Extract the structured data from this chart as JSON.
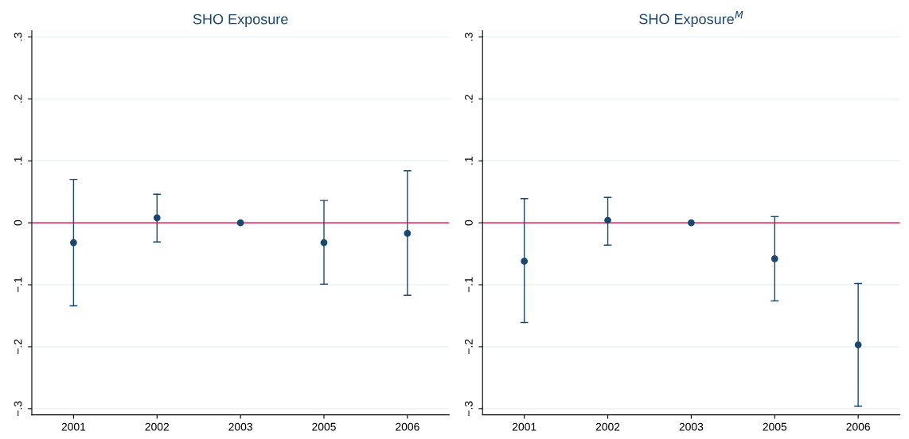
{
  "chart_data": [
    {
      "type": "scatter",
      "title": "SHO Exposure",
      "categories": [
        "2001",
        "2002",
        "2003",
        "2005",
        "2006"
      ],
      "series": [
        {
          "color": "#1a476f",
          "values": [
            -0.032,
            0.008,
            0,
            -0.032,
            -0.017
          ],
          "errors": [
            [
              -0.134,
              0.07
            ],
            [
              -0.031,
              0.046
            ],
            null,
            [
              -0.099,
              0.036
            ],
            [
              -0.117,
              0.084
            ]
          ]
        }
      ],
      "ylim": [
        -0.31,
        0.31
      ],
      "yticks": [
        {
          "value": -0.3,
          "label": "−.3"
        },
        {
          "value": -0.2,
          "label": "−.2"
        },
        {
          "value": -0.1,
          "label": "−.1"
        },
        0,
        {
          "value": 0.1,
          "label": ".1"
        },
        {
          "value": 0.2,
          "label": ".2"
        },
        {
          "value": 0.3,
          "label": ".3"
        }
      ],
      "grid": "y",
      "marker": "circle",
      "ref_lines": [
        {
          "axis": "y",
          "value": 0,
          "color": "#d6003a"
        }
      ]
    },
    {
      "type": "scatter",
      "title": "SHO Exposure$^{M}$",
      "categories": [
        "2001",
        "2002",
        "2003",
        "2005",
        "2006"
      ],
      "series": [
        {
          "color": "#1a476f",
          "values": [
            -0.062,
            0.004,
            0,
            -0.058,
            -0.197
          ],
          "errors": [
            [
              -0.161,
              0.039
            ],
            [
              -0.036,
              0.041
            ],
            null,
            [
              -0.126,
              0.01
            ],
            [
              -0.296,
              -0.098
            ]
          ]
        }
      ],
      "ylim": [
        -0.31,
        0.31
      ],
      "yticks": [
        {
          "value": -0.3,
          "label": "−.3"
        },
        {
          "value": -0.2,
          "label": "−.2"
        },
        {
          "value": -0.1,
          "label": "−.1"
        },
        0,
        {
          "value": 0.1,
          "label": ".1"
        },
        {
          "value": 0.2,
          "label": ".2"
        },
        {
          "value": 0.3,
          "label": ".3"
        }
      ],
      "grid": "y",
      "marker": "circle",
      "ref_lines": [
        {
          "axis": "y",
          "value": 0,
          "color": "#d6003a"
        }
      ]
    }
  ]
}
